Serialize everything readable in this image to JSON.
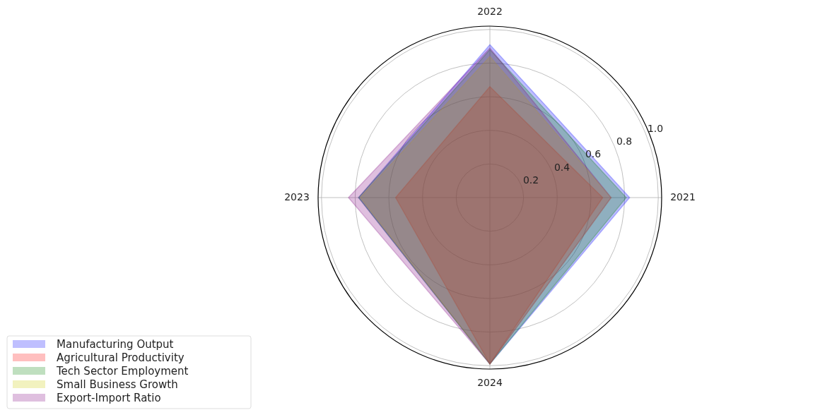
{
  "chart_data": {
    "type": "radar",
    "categories": [
      "2022",
      "2021",
      "2024",
      "2023"
    ],
    "series": [
      {
        "name": "Manufacturing Output",
        "color": "#0000ff",
        "values": [
          0.91,
          0.83,
          0.99,
          0.78
        ]
      },
      {
        "name": "Agricultural Productivity",
        "color": "#ff0000",
        "values": [
          0.66,
          0.67,
          0.99,
          0.56
        ]
      },
      {
        "name": "Tech Sector Employment",
        "color": "#008000",
        "values": [
          0.88,
          0.81,
          0.99,
          0.78
        ]
      },
      {
        "name": "Small Business Growth",
        "color": "#cccc00",
        "values": [
          0.84,
          0.72,
          0.99,
          0.77
        ]
      },
      {
        "name": "Export-Import Ratio",
        "color": "#800080",
        "values": [
          0.89,
          0.72,
          0.99,
          0.84
        ]
      }
    ],
    "ylim": [
      0,
      1.02
    ],
    "yticks": [
      0.2,
      0.4,
      0.6,
      0.8,
      {
        "value": 1.0,
        "label": "1.0"
      }
    ],
    "grid": true,
    "legend": "bottom left"
  }
}
